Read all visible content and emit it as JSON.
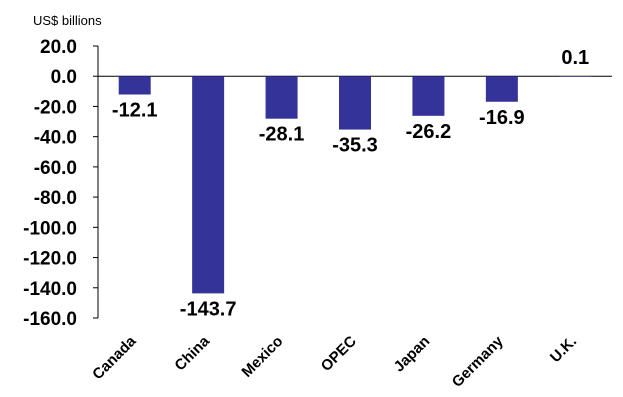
{
  "chart_data": {
    "type": "bar",
    "unit_label": "US$ billions",
    "categories": [
      "Canada",
      "China",
      "Mexico",
      "OPEC",
      "Japan",
      "Germany",
      "U.K."
    ],
    "values": [
      -12.1,
      -143.7,
      -28.1,
      -35.3,
      -26.2,
      -16.9,
      0.1
    ],
    "data_labels": [
      "-12.1",
      "-143.7",
      "-28.1",
      "-35.3",
      "-26.2",
      "-16.9",
      "0.1"
    ],
    "y_ticks": [
      "20.0",
      "0.0",
      "-20.0",
      "-40.0",
      "-60.0",
      "-80.0",
      "-100.0",
      "-120.0",
      "-140.0",
      "-160.0"
    ],
    "ylim": [
      -160,
      20
    ],
    "bar_color": "#333399",
    "grid": false,
    "legend": false
  }
}
